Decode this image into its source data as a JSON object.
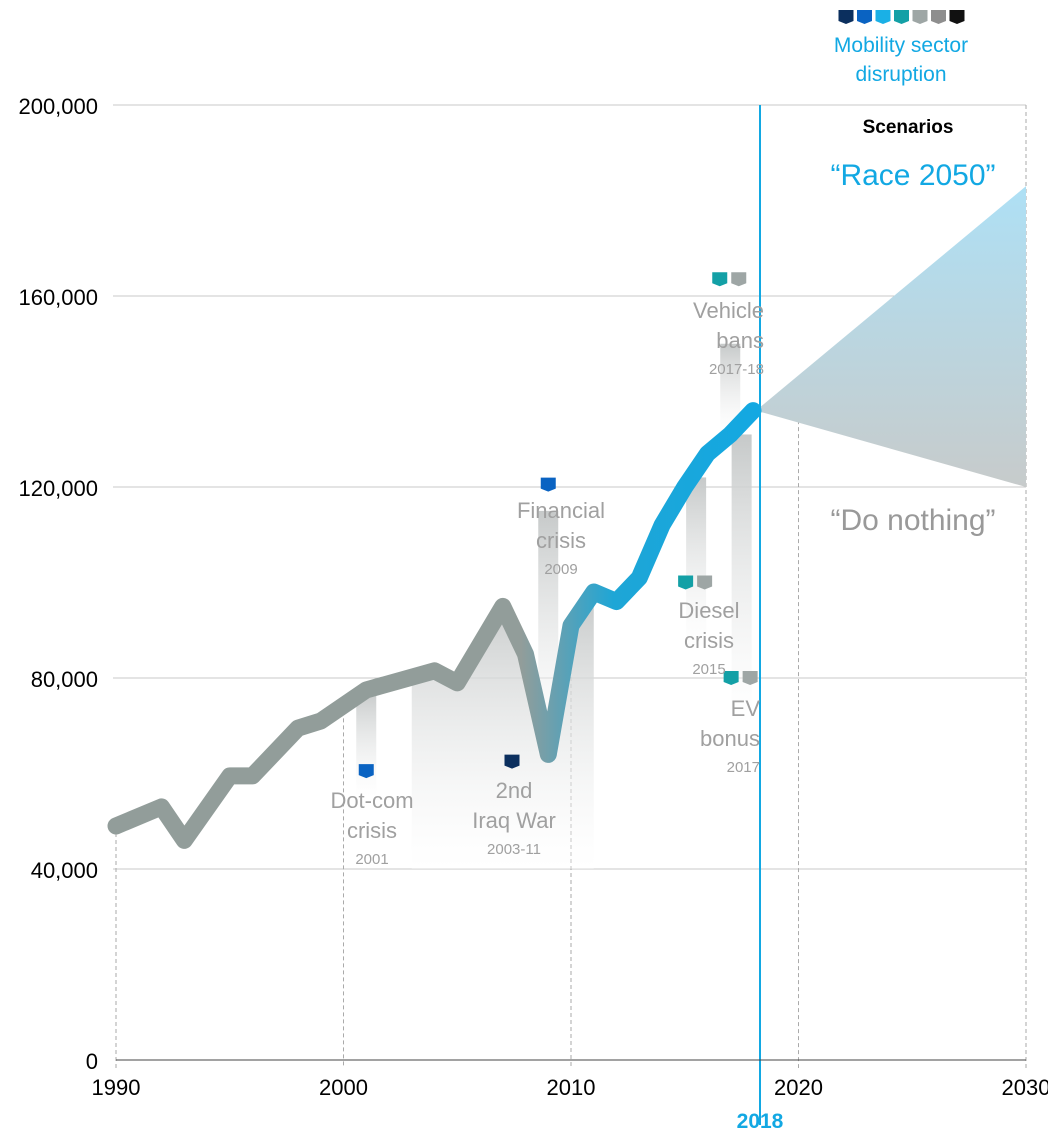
{
  "chart_data": {
    "type": "line",
    "y_ticks": [
      {
        "value": 0,
        "label": "0"
      },
      {
        "value": 40000,
        "label": "40,000"
      },
      {
        "value": 80000,
        "label": "80,000"
      },
      {
        "value": 120000,
        "label": "120,000"
      },
      {
        "value": 160000,
        "label": "160,000"
      },
      {
        "value": 200000,
        "label": "200,000"
      }
    ],
    "x_ticks": [
      {
        "value": 1990,
        "label": "1990"
      },
      {
        "value": 2000,
        "label": "2000"
      },
      {
        "value": 2010,
        "label": "2010"
      },
      {
        "value": 2020,
        "label": "2020"
      },
      {
        "value": 2030,
        "label": "2030"
      }
    ],
    "xlim": [
      1990,
      2030
    ],
    "current_year": {
      "value": 2018,
      "label": "2018"
    },
    "series": [
      {
        "x": [
          1990,
          1992,
          1993,
          1995,
          1996,
          1998,
          1999,
          2001,
          2004,
          2005,
          2007,
          2008,
          2009,
          2010,
          2011,
          2012,
          2013,
          2014,
          2015,
          2016,
          2017,
          2018
        ],
        "values": [
          49000,
          53000,
          46000,
          59500,
          59500,
          69500,
          71000,
          77500,
          81500,
          79000,
          95000,
          85000,
          64000,
          91000,
          98000,
          96000,
          101000,
          112000,
          120000,
          127000,
          131000,
          136000
        ]
      }
    ],
    "scenarios": {
      "header": "Scenarios",
      "start": {
        "x": 2018,
        "y": 136000
      },
      "race": {
        "label": "“Race 2050”",
        "x": 2030,
        "y": 183000
      },
      "do_nothing": {
        "label": "“Do nothing”",
        "x": 2030,
        "y": 120000
      }
    },
    "legend": {
      "line1": "Mobility sector",
      "line2": "disruption",
      "colors": [
        "#0b2f5e",
        "#0a63c2",
        "#1ab0e6",
        "#13a0a6",
        "#9ea6a5",
        "#8e8e8e",
        "#111111"
      ]
    },
    "events": [
      {
        "title": [
          "Dot-com",
          "crisis"
        ],
        "year_label": "2001",
        "x": 2001,
        "bar_top": 77500,
        "bar_bottom": 55000,
        "marker_y": 60500,
        "marker_colors": [
          "#0a63c2"
        ]
      },
      {
        "title": [
          "2nd",
          "Iraq War"
        ],
        "year_label": "2003-11",
        "x_from": 2003,
        "x_to": 2011,
        "bar_bottom": 40000,
        "marker_y": 62500,
        "marker_colors": [
          "#0b2f5e"
        ]
      },
      {
        "title": [
          "Financial",
          "crisis"
        ],
        "year_label": "2009",
        "x": 2009,
        "bar_top": 115000,
        "bar_bottom": 64000,
        "marker_y": 120500,
        "marker_colors": [
          "#0a63c2"
        ]
      },
      {
        "title": [
          "Diesel",
          "crisis"
        ],
        "year_label": "2015",
        "x": 2015.5,
        "bar_top": 122000,
        "bar_bottom": 86000,
        "marker_y": 100000,
        "marker_colors": [
          "#13a0a6",
          "#9ea6a5"
        ]
      },
      {
        "title": [
          "EV",
          "bonus"
        ],
        "year_label": "2017",
        "x": 2017.5,
        "bar_top": 131000,
        "bar_bottom": 70000,
        "marker_y": 80000,
        "marker_colors": [
          "#13a0a6",
          "#9ea6a5"
        ]
      },
      {
        "title": [
          "Vehicle",
          "bans"
        ],
        "year_label": "2017-18",
        "x": 2017,
        "bar_top": 150000,
        "bar_bottom": 131000,
        "marker_y": 163500,
        "marker_colors": [
          "#13a0a6",
          "#9ea6a5"
        ]
      }
    ],
    "colors": {
      "grey_line": "#929d9a",
      "blue_line": "#12a8e3",
      "accent": "#12a8e3",
      "grid": "#c8c8c8",
      "event_text": "#a0a0a0"
    }
  }
}
